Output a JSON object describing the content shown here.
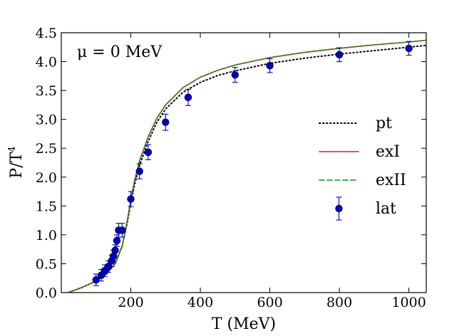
{
  "chart_data": {
    "type": "line",
    "title": "",
    "annotation": "μ = 0 MeV",
    "xlabel": "T (MeV)",
    "ylabel": "P/T",
    "ylabel_sup": "4",
    "xlim": [
      0,
      1050
    ],
    "ylim": [
      0,
      4.5
    ],
    "xticks": [
      200,
      400,
      600,
      800,
      1000
    ],
    "yticks": [
      0.0,
      0.5,
      1.0,
      1.5,
      2.0,
      2.5,
      3.0,
      3.5,
      4.0,
      4.5
    ],
    "xtick_labels": [
      "200",
      "400",
      "600",
      "800",
      "1000"
    ],
    "ytick_labels": [
      "0.0",
      "0.5",
      "1.0",
      "1.5",
      "2.0",
      "2.5",
      "3.0",
      "3.5",
      "4.0",
      "4.5"
    ],
    "legend_position": "center-right",
    "series": [
      {
        "name": "pt",
        "style": "dotted",
        "color": "#000000",
        "x": [
          20,
          60,
          100,
          130,
          155,
          175,
          190,
          200,
          210,
          225,
          250,
          275,
          300,
          350,
          400,
          450,
          500,
          600,
          700,
          800,
          900,
          1000,
          1050
        ],
        "y": [
          0.0,
          0.09,
          0.2,
          0.32,
          0.5,
          0.8,
          1.22,
          1.55,
          1.85,
          2.2,
          2.62,
          2.95,
          3.18,
          3.47,
          3.64,
          3.76,
          3.84,
          3.97,
          4.06,
          4.13,
          4.19,
          4.25,
          4.28
        ]
      },
      {
        "name": "exI",
        "style": "solid",
        "color": "#e31a1c",
        "x": [
          20,
          60,
          100,
          130,
          155,
          175,
          190,
          200,
          210,
          225,
          250,
          275,
          300,
          350,
          400,
          450,
          500,
          600,
          700,
          800,
          900,
          1000,
          1050
        ],
        "y": [
          0.0,
          0.09,
          0.2,
          0.32,
          0.5,
          0.8,
          1.25,
          1.6,
          1.92,
          2.28,
          2.7,
          3.02,
          3.25,
          3.55,
          3.73,
          3.85,
          3.94,
          4.07,
          4.16,
          4.23,
          4.29,
          4.34,
          4.37
        ]
      },
      {
        "name": "exII",
        "style": "dashed",
        "color": "#1a8a1a",
        "x": [
          20,
          60,
          100,
          130,
          155,
          175,
          190,
          200,
          210,
          225,
          250,
          275,
          300,
          350,
          400,
          450,
          500,
          600,
          700,
          800,
          900,
          1000,
          1050
        ],
        "y": [
          0.0,
          0.09,
          0.2,
          0.32,
          0.5,
          0.8,
          1.25,
          1.6,
          1.92,
          2.28,
          2.7,
          3.02,
          3.25,
          3.55,
          3.73,
          3.85,
          3.94,
          4.07,
          4.16,
          4.23,
          4.29,
          4.34,
          4.37
        ]
      },
      {
        "name": "lat",
        "style": "errorbar",
        "color": "#0000cc",
        "x": [
          100,
          115,
          125,
          135,
          145,
          150,
          155,
          160,
          165,
          175,
          200,
          225,
          250,
          300,
          365,
          500,
          600,
          800,
          1000
        ],
        "y": [
          0.22,
          0.3,
          0.38,
          0.45,
          0.55,
          0.63,
          0.73,
          0.9,
          1.08,
          1.08,
          1.62,
          2.1,
          2.43,
          2.95,
          3.38,
          3.77,
          3.93,
          4.12,
          4.23
        ],
        "err": [
          0.1,
          0.1,
          0.1,
          0.1,
          0.1,
          0.1,
          0.1,
          0.1,
          0.12,
          0.12,
          0.13,
          0.13,
          0.13,
          0.14,
          0.14,
          0.13,
          0.12,
          0.12,
          0.12
        ]
      }
    ]
  }
}
